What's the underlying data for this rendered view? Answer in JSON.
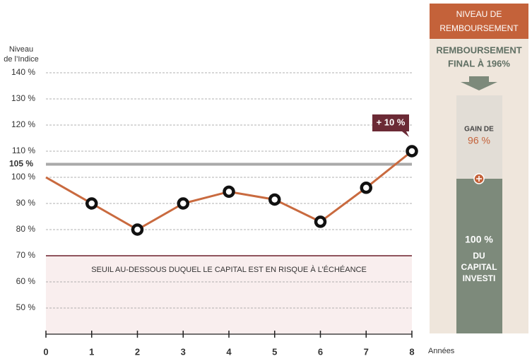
{
  "chart_data": {
    "type": "line",
    "ylabel": [
      "Niveau",
      "de l’Indice"
    ],
    "xlabel": "Années",
    "x": [
      0,
      1,
      2,
      3,
      4,
      5,
      6,
      7,
      8
    ],
    "series": [
      {
        "color": "#c96a3f",
        "values": [
          100,
          90,
          80,
          90,
          94.5,
          91.5,
          83,
          96,
          110
        ]
      }
    ],
    "xlim": [
      0,
      8
    ],
    "xticks": [
      0,
      1,
      2,
      3,
      4,
      5,
      6,
      7,
      8
    ],
    "ylim": [
      40,
      140
    ],
    "yticks": [
      {
        "value": 50,
        "label": "50 %"
      },
      {
        "value": 60,
        "label": "60 %"
      },
      {
        "value": 70,
        "label": "70 %"
      },
      {
        "value": 80,
        "label": "80 %"
      },
      {
        "value": 90,
        "label": "90 %"
      },
      {
        "value": 100,
        "label": "100 %"
      },
      {
        "value": 110,
        "label": "110 %"
      },
      {
        "value": 120,
        "label": "120 %"
      },
      {
        "value": 130,
        "label": "130 %"
      },
      {
        "value": 140,
        "label": "140 %"
      }
    ],
    "grid": true,
    "reference_line": {
      "value": 105,
      "label": "105 %",
      "color": "#a9a9a9"
    },
    "threshold": {
      "value": 70,
      "label": "SEUIL AU-DESSOUS DUQUEL LE CAPITAL EST EN RISQUE À L’ÉCHÉANCE",
      "color": "#6b1f2a"
    },
    "annotation": "+ 10 %"
  },
  "panel": {
    "header": [
      "NIVEAU DE",
      "REMBOURSEMENT"
    ],
    "subtitle": [
      "REMBOURSEMENT",
      "FINAL À 196%"
    ],
    "gain": [
      "GAIN DE",
      "96 %"
    ],
    "capital": [
      "100 %",
      "DU",
      "CAPITAL",
      "INVESTI"
    ]
  }
}
